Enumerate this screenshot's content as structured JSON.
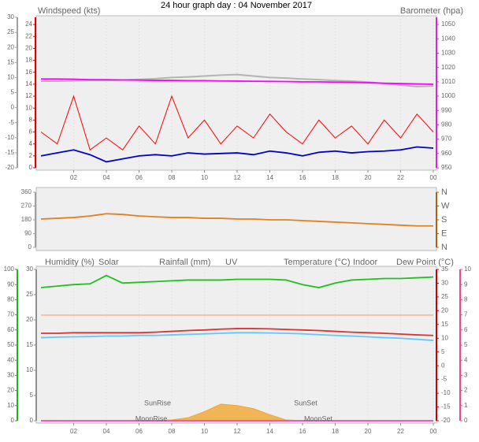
{
  "chart_data": [
    {
      "type": "line",
      "title": "24 hour graph day : 04 November 2017",
      "x": [
        0,
        1,
        2,
        3,
        4,
        5,
        6,
        7,
        8,
        9,
        10,
        11,
        12,
        13,
        14,
        15,
        16,
        17,
        18,
        19,
        20,
        21,
        22,
        23,
        24
      ],
      "xlim": [
        0,
        24
      ],
      "xticks": [
        {
          "value": 2,
          "label": "02"
        },
        {
          "value": 4,
          "label": "04"
        },
        {
          "value": 6,
          "label": "06"
        },
        {
          "value": 8,
          "label": "08"
        },
        10,
        12,
        14,
        16,
        18,
        20,
        22,
        {
          "value": 24,
          "label": "00"
        }
      ],
      "grid": true,
      "axes": [
        {
          "lim": [
            -20,
            30
          ],
          "ticks": [
            -20,
            -15,
            -10,
            -5,
            0,
            5,
            10,
            15,
            20,
            25,
            30
          ],
          "color": "#a0a0a0"
        },
        {
          "lim": [
            0,
            25.2
          ],
          "ticks": [
            0,
            2,
            4,
            6,
            8,
            10,
            12,
            14,
            16,
            18,
            20,
            22,
            24
          ],
          "color": "#dd0000"
        },
        {
          "lim": [
            950,
            1055
          ],
          "ticks": [
            950,
            960,
            970,
            980,
            990,
            1000,
            1010,
            1020,
            1030,
            1040,
            1050
          ],
          "color": "#e020e0"
        }
      ],
      "series": [
        {
          "axis": 0,
          "color": "#b4b4b4",
          "values": [
            8.8,
            8.8,
            8.9,
            9,
            9,
            9.2,
            9.4,
            9.6,
            10,
            10.2,
            10.5,
            10.8,
            11,
            10.5,
            10,
            9.8,
            9.5,
            9.3,
            9,
            8.8,
            8.5,
            8,
            7.5,
            7,
            7.2
          ]
        },
        {
          "name": "Barometer (hpa)",
          "axis": 2,
          "color": "#ff00ff",
          "values": [
            1012,
            1012,
            1011.8,
            1011.5,
            1011.5,
            1011.3,
            1011.2,
            1011,
            1011,
            1010.8,
            1010.8,
            1010.6,
            1010.5,
            1010.4,
            1010.3,
            1010.2,
            1010,
            1010,
            1009.8,
            1009.6,
            1009.4,
            1009,
            1008.8,
            1008.5,
            1008.3
          ]
        },
        {
          "name": "Windspeed (kts)",
          "axis": 1,
          "color": "#ff0000",
          "values": [
            6,
            4,
            12,
            3,
            5,
            3,
            7,
            4,
            12,
            5,
            8,
            4,
            7,
            5,
            9,
            6,
            4,
            8,
            5,
            7,
            4,
            8,
            5,
            9,
            6
          ]
        },
        {
          "axis": 1,
          "color": "#0000cc",
          "values": [
            2,
            2.5,
            3,
            2.2,
            1,
            1.5,
            2,
            2.2,
            2,
            2.5,
            2.3,
            2.4,
            2.5,
            2.2,
            2.8,
            2.5,
            2,
            2.6,
            2.8,
            2.5,
            2.7,
            2.8,
            3,
            3.5,
            3.3
          ]
        }
      ]
    },
    {
      "type": "line",
      "x": [
        0,
        1,
        2,
        3,
        4,
        5,
        6,
        7,
        8,
        9,
        10,
        11,
        12,
        13,
        14,
        15,
        16,
        17,
        18,
        19,
        20,
        21,
        22,
        23,
        24
      ],
      "xlim": [
        0,
        24
      ],
      "axes": [
        {
          "lim": [
            0,
            360
          ],
          "ticks": [
            0,
            90,
            180,
            270,
            360
          ],
          "color": "#a0a0a0"
        },
        {
          "lim": [
            0,
            360
          ],
          "ticks": [
            {
              "value": 0,
              "label": "N"
            },
            {
              "value": 90,
              "label": "E"
            },
            {
              "value": 180,
              "label": "S"
            },
            {
              "value": 270,
              "label": "W"
            },
            {
              "value": 360,
              "label": "N"
            }
          ],
          "color": "#b06010"
        }
      ],
      "series": [
        {
          "axis": 0,
          "color": "#e08020",
          "values": [
            185,
            190,
            195,
            205,
            220,
            215,
            205,
            200,
            195,
            195,
            190,
            190,
            185,
            185,
            180,
            180,
            175,
            170,
            165,
            160,
            155,
            150,
            145,
            140,
            140
          ]
        }
      ]
    },
    {
      "type": "line",
      "x": [
        0,
        1,
        2,
        3,
        4,
        5,
        6,
        7,
        8,
        9,
        10,
        11,
        12,
        13,
        14,
        15,
        16,
        17,
        18,
        19,
        20,
        21,
        22,
        23,
        24
      ],
      "xlim": [
        0,
        24
      ],
      "xticks": [
        {
          "value": 2,
          "label": "02"
        },
        {
          "value": 4,
          "label": "04"
        },
        {
          "value": 6,
          "label": "06"
        },
        {
          "value": 8,
          "label": "08"
        },
        10,
        12,
        14,
        16,
        18,
        20,
        22,
        {
          "value": 24,
          "label": "00"
        }
      ],
      "grid": true,
      "axes": [
        {
          "lim": [
            0,
            100
          ],
          "ticks": [
            0,
            10,
            20,
            30,
            40,
            50,
            60,
            70,
            80,
            90,
            100
          ],
          "color": "#20b020"
        },
        {
          "lim": [
            0,
            30
          ],
          "ticks": [
            0,
            5,
            10,
            15,
            20,
            25,
            30
          ],
          "color": "#909090"
        },
        {
          "lim": [
            -20,
            35
          ],
          "ticks": [
            -20,
            -15,
            -10,
            -5,
            0,
            5,
            10,
            15,
            20,
            25,
            30,
            35
          ],
          "color": "#cc0000"
        },
        {
          "lim": [
            0,
            10
          ],
          "ticks": [
            0,
            1,
            2,
            3,
            4,
            5,
            6,
            7,
            8,
            9,
            10
          ],
          "color": "#ff4090"
        }
      ],
      "series": [
        {
          "name": "Humidity (%)",
          "axis": 0,
          "color": "#20c020",
          "values": [
            88,
            89,
            90,
            90.5,
            96,
            91,
            91.5,
            92,
            92.5,
            93,
            93,
            93,
            93.5,
            93.5,
            93.5,
            93,
            90,
            88,
            91,
            93,
            93.5,
            94,
            94,
            94.5,
            95
          ]
        },
        {
          "name": "Solar",
          "type": "area",
          "axis": 0,
          "color": "#f0a830",
          "values": [
            0,
            0,
            0,
            0,
            0,
            0,
            0,
            0,
            0.5,
            2,
            6,
            11,
            10,
            8,
            4,
            0.5,
            0,
            0,
            0,
            0,
            0,
            0,
            0,
            0,
            0
          ]
        },
        {
          "name": "Rainfall (mm)",
          "axis": 1,
          "color": "#0000aa",
          "values": [
            0,
            0,
            0,
            0,
            0,
            0,
            0,
            0,
            0,
            0,
            0,
            0,
            0,
            0,
            0,
            0,
            0,
            0,
            0,
            0,
            0,
            0,
            0,
            0,
            0
          ]
        },
        {
          "name": "UV",
          "axis": 3,
          "color": "#ff60c0",
          "values": [
            0,
            0,
            0,
            0,
            0,
            0,
            0,
            0,
            0,
            0,
            0,
            0,
            0,
            0,
            0,
            0,
            0,
            0,
            0,
            0,
            0,
            0,
            0,
            0,
            0
          ]
        },
        {
          "name": "Temperature (°C)",
          "axis": 2,
          "color": "#e03030",
          "values": [
            11.8,
            11.8,
            12,
            12,
            12,
            12,
            12,
            12.2,
            12.5,
            12.8,
            13,
            13.3,
            13.5,
            13.5,
            13.4,
            13.2,
            13,
            12.8,
            12.5,
            12.2,
            12,
            11.8,
            11.5,
            11.2,
            11
          ]
        },
        {
          "name": "Indoor",
          "axis": 2,
          "color": "#f8c0a0",
          "values": [
            18.4,
            18.4,
            18.4,
            18.4,
            18.4,
            18.4,
            18.4,
            18.4,
            18.4,
            18.4,
            18.4,
            18.4,
            18.4,
            18.4,
            18.4,
            18.4,
            18.4,
            18.4,
            18.4,
            18.4,
            18.4,
            18.4,
            18.4,
            18.4,
            18.4
          ]
        },
        {
          "name": "Dew Point (°C)",
          "axis": 2,
          "color": "#60c8ff",
          "values": [
            10.2,
            10.4,
            10.5,
            10.6,
            10.8,
            10.8,
            11,
            11,
            11.2,
            11.4,
            11.6,
            11.8,
            12,
            12,
            11.9,
            11.8,
            11.6,
            11.3,
            11,
            10.8,
            10.5,
            10.2,
            10,
            9.6,
            9.2
          ]
        }
      ],
      "annotations": [
        "SunRise",
        "SunSet",
        "MoonRise",
        "MoonSet"
      ]
    }
  ]
}
